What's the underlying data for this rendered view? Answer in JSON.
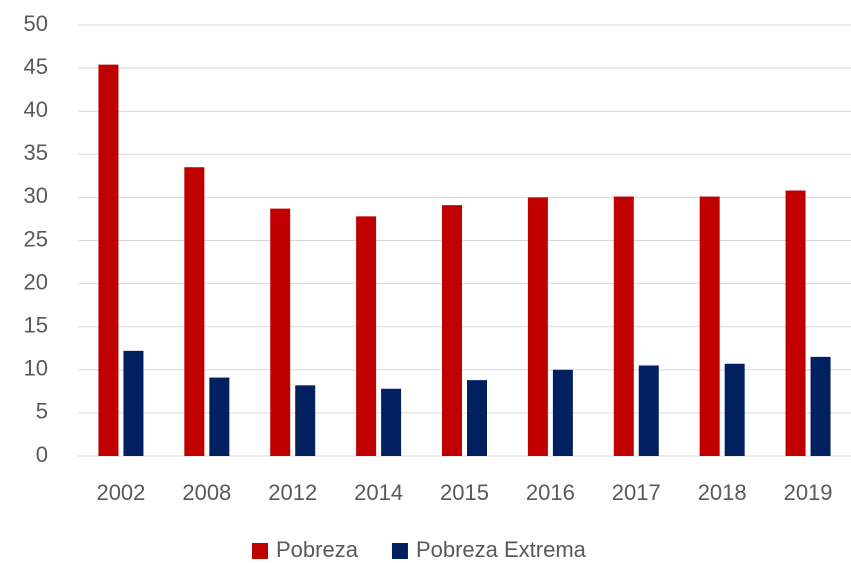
{
  "chart_data": {
    "type": "bar",
    "categories": [
      "2002",
      "2008",
      "2012",
      "2014",
      "2015",
      "2016",
      "2017",
      "2018",
      "2019"
    ],
    "series": [
      {
        "name": "Pobreza",
        "color": "#c00000",
        "values": [
          45.4,
          33.5,
          28.7,
          27.8,
          29.1,
          30.0,
          30.1,
          30.1,
          30.8
        ]
      },
      {
        "name": "Pobreza Extrema",
        "color": "#002060",
        "values": [
          12.2,
          9.1,
          8.2,
          7.8,
          8.8,
          10.0,
          10.5,
          10.7,
          11.5
        ]
      }
    ],
    "ylim": [
      0,
      50
    ],
    "yticks": [
      0,
      5,
      10,
      15,
      20,
      25,
      30,
      35,
      40,
      45,
      50
    ],
    "grid": true,
    "legend": "bottom"
  }
}
